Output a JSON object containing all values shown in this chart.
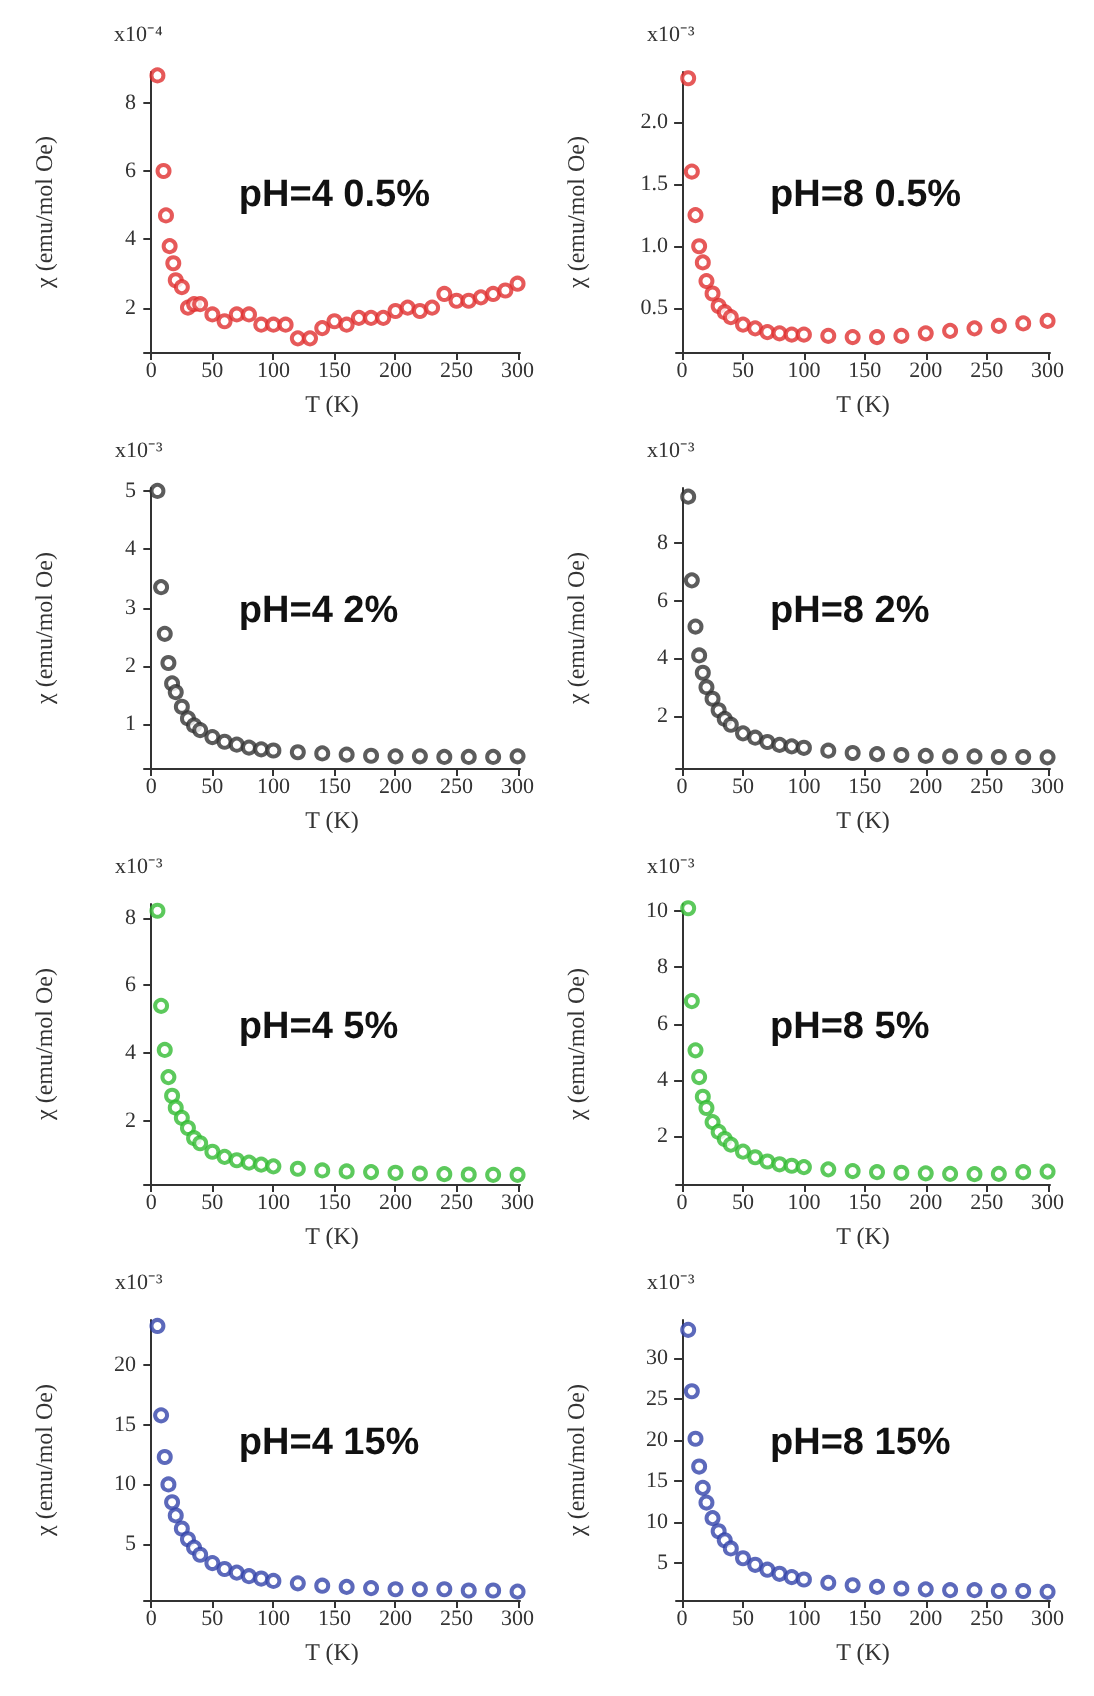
{
  "chart_data": [
    {
      "type": "scatter",
      "title": "pH=4 0.5%",
      "xlabel": "T (K)",
      "ylabel": "χ (emu/mol Oe)",
      "marker": "circle",
      "grid": false,
      "xlim": [
        -6,
        302
      ],
      "xticks": [
        0,
        50,
        100,
        150,
        200,
        250,
        300
      ],
      "ylim": [
        0.7,
        8.9
      ],
      "yticks": [
        2,
        4,
        6,
        8
      ],
      "annotations": [
        "x10⁻⁴"
      ],
      "x": [
        5,
        10,
        12,
        15,
        18,
        20,
        25,
        30,
        35,
        40,
        50,
        60,
        70,
        80,
        90,
        100,
        110,
        120,
        130,
        140,
        150,
        160,
        170,
        180,
        190,
        200,
        210,
        220,
        230,
        240,
        250,
        260,
        270,
        280,
        290,
        300
      ],
      "series": [
        {
          "color": "#e03030",
          "values": [
            8.8,
            6.0,
            4.7,
            3.8,
            3.3,
            2.8,
            2.6,
            2.0,
            2.1,
            2.1,
            1.8,
            1.6,
            1.8,
            1.8,
            1.5,
            1.5,
            1.5,
            1.1,
            1.1,
            1.4,
            1.6,
            1.5,
            1.7,
            1.7,
            1.7,
            1.9,
            2.0,
            1.9,
            2.0,
            2.4,
            2.2,
            2.2,
            2.3,
            2.4,
            2.5,
            2.7
          ]
        }
      ]
    },
    {
      "type": "scatter",
      "title": "pH=8 0.5%",
      "xlabel": "T (K)",
      "ylabel": "χ (emu/mol Oe)",
      "marker": "circle",
      "grid": false,
      "xlim": [
        -5,
        302
      ],
      "xticks": [
        0,
        50,
        100,
        150,
        200,
        250,
        300
      ],
      "ylim": [
        0.15,
        2.4
      ],
      "yticks": [
        0.5,
        {
          "value": 1,
          "label": "1.0"
        },
        1.5,
        {
          "value": 2,
          "label": "2.0"
        }
      ],
      "annotations": [
        "x10⁻³"
      ],
      "x": [
        5,
        8,
        11,
        14,
        17,
        20,
        25,
        30,
        35,
        40,
        50,
        60,
        70,
        80,
        90,
        100,
        120,
        140,
        160,
        180,
        200,
        220,
        240,
        260,
        280,
        300
      ],
      "series": [
        {
          "color": "#e03030",
          "values": [
            2.35,
            1.6,
            1.25,
            1.0,
            0.87,
            0.72,
            0.62,
            0.52,
            0.47,
            0.43,
            0.37,
            0.34,
            0.31,
            0.3,
            0.29,
            0.29,
            0.28,
            0.27,
            0.27,
            0.28,
            0.3,
            0.32,
            0.34,
            0.36,
            0.38,
            0.4
          ]
        }
      ]
    },
    {
      "type": "scatter",
      "title": "pH=4 2%",
      "xlabel": "T (K)",
      "ylabel": "χ (emu/mol Oe)",
      "marker": "circle",
      "grid": false,
      "xlim": [
        -6,
        302
      ],
      "xticks": [
        0,
        50,
        100,
        150,
        200,
        250,
        300
      ],
      "ylim": [
        0.25,
        5.05
      ],
      "yticks": [
        1,
        2,
        3,
        4,
        5
      ],
      "annotations": [
        "x10⁻³"
      ],
      "x": [
        5,
        8,
        11,
        14,
        17,
        20,
        25,
        30,
        35,
        40,
        50,
        60,
        70,
        80,
        90,
        100,
        120,
        140,
        160,
        180,
        200,
        220,
        240,
        260,
        280,
        300
      ],
      "series": [
        {
          "color": "#333333",
          "values": [
            5.0,
            3.35,
            2.55,
            2.05,
            1.7,
            1.55,
            1.3,
            1.1,
            0.98,
            0.9,
            0.78,
            0.7,
            0.65,
            0.6,
            0.57,
            0.55,
            0.52,
            0.5,
            0.48,
            0.46,
            0.45,
            0.45,
            0.44,
            0.44,
            0.44,
            0.45
          ]
        }
      ]
    },
    {
      "type": "scatter",
      "title": "pH=8 2%",
      "xlabel": "T (K)",
      "ylabel": "χ (emu/mol Oe)",
      "marker": "circle",
      "grid": false,
      "xlim": [
        -5,
        302
      ],
      "xticks": [
        0,
        50,
        100,
        150,
        200,
        250,
        300
      ],
      "ylim": [
        0.2,
        9.9
      ],
      "yticks": [
        2,
        4,
        6,
        8
      ],
      "annotations": [
        "x10⁻³"
      ],
      "x": [
        5,
        8,
        11,
        14,
        17,
        20,
        25,
        30,
        35,
        40,
        50,
        60,
        70,
        80,
        90,
        100,
        120,
        140,
        160,
        180,
        200,
        220,
        240,
        260,
        280,
        300
      ],
      "series": [
        {
          "color": "#333333",
          "values": [
            9.6,
            6.7,
            5.1,
            4.1,
            3.5,
            3.0,
            2.6,
            2.2,
            1.9,
            1.7,
            1.4,
            1.25,
            1.1,
            1.0,
            0.95,
            0.9,
            0.8,
            0.72,
            0.68,
            0.65,
            0.62,
            0.6,
            0.6,
            0.58,
            0.58,
            0.57
          ]
        }
      ]
    },
    {
      "type": "scatter",
      "title": "pH=4 5%",
      "xlabel": "T (K)",
      "ylabel": "χ (emu/mol Oe)",
      "marker": "circle",
      "grid": false,
      "xlim": [
        -6,
        302
      ],
      "xticks": [
        0,
        50,
        100,
        150,
        200,
        250,
        300
      ],
      "ylim": [
        0.15,
        8.4
      ],
      "yticks": [
        2,
        4,
        6,
        8
      ],
      "annotations": [
        "x10⁻³"
      ],
      "x": [
        5,
        8,
        11,
        14,
        17,
        20,
        25,
        30,
        35,
        40,
        50,
        60,
        70,
        80,
        90,
        100,
        120,
        140,
        160,
        180,
        200,
        220,
        240,
        260,
        280,
        300
      ],
      "series": [
        {
          "color": "#33bb33",
          "values": [
            8.2,
            5.4,
            4.1,
            3.3,
            2.75,
            2.4,
            2.1,
            1.8,
            1.5,
            1.35,
            1.1,
            0.95,
            0.85,
            0.78,
            0.72,
            0.67,
            0.6,
            0.55,
            0.52,
            0.5,
            0.48,
            0.46,
            0.44,
            0.43,
            0.42,
            0.42
          ]
        }
      ]
    },
    {
      "type": "scatter",
      "title": "pH=8 5%",
      "xlabel": "T (K)",
      "ylabel": "χ (emu/mol Oe)",
      "marker": "circle",
      "grid": false,
      "xlim": [
        -5,
        302
      ],
      "xticks": [
        0,
        50,
        100,
        150,
        200,
        250,
        300
      ],
      "ylim": [
        0.3,
        10.25
      ],
      "yticks": [
        2,
        4,
        6,
        8,
        10
      ],
      "annotations": [
        "x10⁻³"
      ],
      "x": [
        5,
        8,
        11,
        14,
        17,
        20,
        25,
        30,
        35,
        40,
        50,
        60,
        70,
        80,
        90,
        100,
        120,
        140,
        160,
        180,
        200,
        220,
        240,
        260,
        280,
        300
      ],
      "series": [
        {
          "color": "#33bb33",
          "values": [
            10.1,
            6.8,
            5.05,
            4.1,
            3.4,
            3.0,
            2.5,
            2.15,
            1.9,
            1.7,
            1.45,
            1.25,
            1.1,
            1.0,
            0.95,
            0.9,
            0.82,
            0.76,
            0.72,
            0.7,
            0.68,
            0.66,
            0.65,
            0.66,
            0.72,
            0.74
          ]
        }
      ]
    },
    {
      "type": "scatter",
      "title": "pH=4 15%",
      "xlabel": "T (K)",
      "ylabel": "χ (emu/mol Oe)",
      "marker": "circle",
      "grid": false,
      "xlim": [
        -6,
        302
      ],
      "xticks": [
        0,
        50,
        100,
        150,
        200,
        250,
        300
      ],
      "ylim": [
        0.3,
        23.8
      ],
      "yticks": [
        5,
        10,
        15,
        20
      ],
      "annotations": [
        "x10⁻³"
      ],
      "x": [
        5,
        8,
        11,
        14,
        17,
        20,
        25,
        30,
        35,
        40,
        50,
        60,
        70,
        80,
        90,
        100,
        120,
        140,
        160,
        180,
        200,
        220,
        240,
        260,
        280,
        300
      ],
      "series": [
        {
          "color": "#3344aa",
          "values": [
            23.3,
            15.8,
            12.3,
            10.0,
            8.5,
            7.4,
            6.3,
            5.4,
            4.7,
            4.1,
            3.4,
            2.9,
            2.6,
            2.3,
            2.1,
            1.9,
            1.7,
            1.5,
            1.4,
            1.3,
            1.2,
            1.2,
            1.2,
            1.1,
            1.1,
            1.0
          ]
        }
      ]
    },
    {
      "type": "scatter",
      "title": "pH=8 15%",
      "xlabel": "T (K)",
      "ylabel": "χ (emu/mol Oe)",
      "marker": "circle",
      "grid": false,
      "xlim": [
        -5,
        302
      ],
      "xticks": [
        0,
        50,
        100,
        150,
        200,
        250,
        300
      ],
      "ylim": [
        0.5,
        34.7
      ],
      "yticks": [
        5,
        10,
        15,
        20,
        25,
        30
      ],
      "annotations": [
        "x10⁻³"
      ],
      "x": [
        5,
        8,
        11,
        14,
        17,
        20,
        25,
        30,
        35,
        40,
        50,
        60,
        70,
        80,
        90,
        100,
        120,
        140,
        160,
        180,
        200,
        220,
        240,
        260,
        280,
        300
      ],
      "series": [
        {
          "color": "#3344aa",
          "values": [
            33.5,
            26,
            20.2,
            16.8,
            14.2,
            12.4,
            10.5,
            8.9,
            7.8,
            6.8,
            5.6,
            4.8,
            4.2,
            3.7,
            3.3,
            3.0,
            2.6,
            2.3,
            2.1,
            1.9,
            1.8,
            1.7,
            1.7,
            1.6,
            1.6,
            1.5
          ]
        }
      ]
    }
  ]
}
